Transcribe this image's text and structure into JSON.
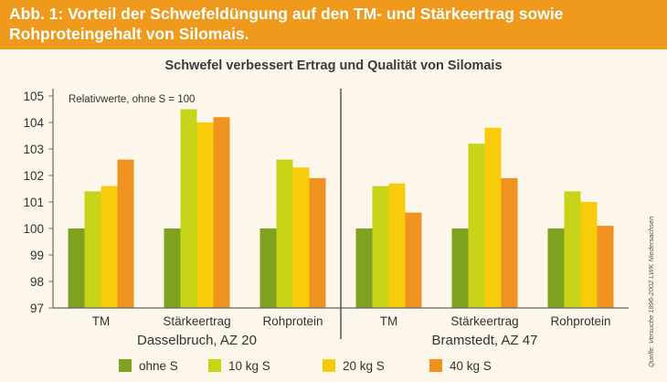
{
  "header": {
    "title_line1": "Abb. 1: Vorteil der Schwefeldüngung auf den TM- und Stärkeertrag sowie",
    "title_line2": "Rohproteingehalt von Silomais."
  },
  "side_note": "Quelle: Versuche 1996-2002 LWK Niedersachsen",
  "colors": {
    "ohne S": "#7ea11f",
    "10 kg S": "#c7d418",
    "20 kg S": "#f8cc0a",
    "40 kg S": "#ef921f",
    "banner": "#ef9a1d"
  },
  "chart_data": {
    "type": "bar",
    "title": "Schwefel verbessert Ertrag und Qualität von Silomais",
    "annotation": "Relativwerte, ohne S = 100",
    "ylim": [
      97,
      105
    ],
    "yticks": [
      97,
      98,
      99,
      100,
      101,
      102,
      103,
      104,
      105
    ],
    "legend_position": "bottom",
    "series_names": [
      "ohne S",
      "10 kg S",
      "20 kg S",
      "40 kg S"
    ],
    "panels": [
      {
        "name": "Dasselbruch, AZ 20",
        "categories": [
          "TM",
          "Stärkeertrag",
          "Rohprotein"
        ],
        "series": [
          {
            "name": "ohne S",
            "values": [
              100,
              100,
              100
            ]
          },
          {
            "name": "10 kg S",
            "values": [
              101.4,
              104.5,
              102.6
            ]
          },
          {
            "name": "20 kg S",
            "values": [
              101.6,
              104.0,
              102.3
            ]
          },
          {
            "name": "40 kg S",
            "values": [
              102.6,
              104.2,
              101.9
            ]
          }
        ]
      },
      {
        "name": "Bramstedt, AZ 47",
        "categories": [
          "TM",
          "Stärkeertrag",
          "Rohprotein"
        ],
        "series": [
          {
            "name": "ohne S",
            "values": [
              100,
              100,
              100
            ]
          },
          {
            "name": "10 kg S",
            "values": [
              101.6,
              103.2,
              101.4
            ]
          },
          {
            "name": "20 kg S",
            "values": [
              101.7,
              103.8,
              101.0
            ]
          },
          {
            "name": "40 kg S",
            "values": [
              100.6,
              101.9,
              100.1
            ]
          }
        ]
      }
    ]
  }
}
